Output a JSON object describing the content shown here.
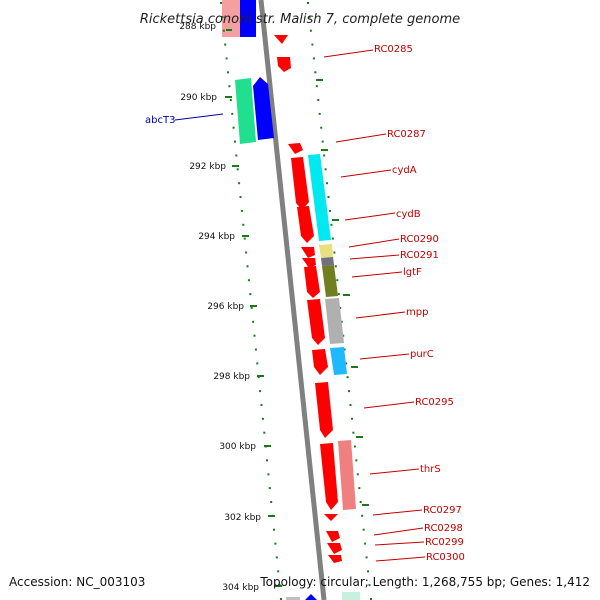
{
  "title": "Rickettsia conorii str. Malish 7, complete genome",
  "footer": {
    "accession": "Accession: NC_003103",
    "summary": "Topology: circular; Length: 1,268,755 bp; Genes: 1,412"
  },
  "ticks": [
    {
      "label": "288 kbp"
    },
    {
      "label": "290 kbp"
    },
    {
      "label": "292 kbp"
    },
    {
      "label": "294 kbp"
    },
    {
      "label": "296 kbp"
    },
    {
      "label": "298 kbp"
    },
    {
      "label": "300 kbp"
    },
    {
      "label": "302 kbp"
    },
    {
      "label": "304 kbp"
    }
  ],
  "gene_labels": [
    {
      "text": "RC0285",
      "color": "#c00000"
    },
    {
      "text": "abcT3",
      "color": "#0000b0"
    },
    {
      "text": "RC0287",
      "color": "#c00000"
    },
    {
      "text": "cydA",
      "color": "#c00000"
    },
    {
      "text": "cydB",
      "color": "#c00000"
    },
    {
      "text": "RC0290",
      "color": "#c00000"
    },
    {
      "text": "RC0291",
      "color": "#c00000"
    },
    {
      "text": "lgtF",
      "color": "#c00000"
    },
    {
      "text": "mpp",
      "color": "#c00000"
    },
    {
      "text": "purC",
      "color": "#c00000"
    },
    {
      "text": "RC0295",
      "color": "#c00000"
    },
    {
      "text": "thrS",
      "color": "#c00000"
    },
    {
      "text": "RC0297",
      "color": "#c00000"
    },
    {
      "text": "RC0298",
      "color": "#c00000"
    },
    {
      "text": "RC0299",
      "color": "#c00000"
    },
    {
      "text": "RC0300",
      "color": "#c00000"
    }
  ],
  "colors": {
    "cds": "#ff0000",
    "backbone": "#808080",
    "tick": "#1a7a1a",
    "cyan": "#00e0f0",
    "green": "#20e090",
    "blue": "#0000ff",
    "pink": "#f08080",
    "olive": "#708020",
    "khaki": "#e8e080",
    "gray": "#b0b0b0",
    "darkgray": "#707080",
    "skyblue": "#20b0ff"
  }
}
